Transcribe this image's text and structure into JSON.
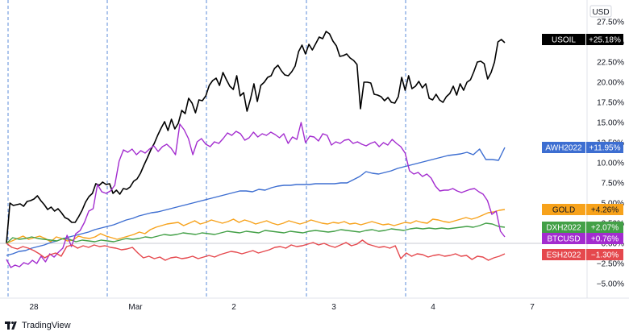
{
  "currency_unit": "USD",
  "branding": "TradingView",
  "chart_data": {
    "type": "line",
    "title": "",
    "xlabel": "",
    "ylabel": "",
    "x_labels": [
      "28",
      "Mar",
      "2",
      "3",
      "4",
      "7"
    ],
    "y_ticks": [
      "27.50%",
      "25.00%",
      "22.50%",
      "20.00%",
      "17.50%",
      "15.00%",
      "12.50%",
      "10.00%",
      "7.50%",
      "5.00%",
      "2.50%",
      "0.00%",
      "−2.50%",
      "−5.00%"
    ],
    "ylim": [
      -6.5,
      28.5
    ],
    "grid": "vertical dashed session separators",
    "legend": "right-axis value badges",
    "series": [
      {
        "name": "USOIL",
        "label": "+25.18%",
        "color": "#000000",
        "values": [
          0,
          5.0,
          4.7,
          4.8,
          4.9,
          4.6,
          5.2,
          5.3,
          5.5,
          5.9,
          5.3,
          4.8,
          4.2,
          4.5,
          4.0,
          4.3,
          3.8,
          3.2,
          3.0,
          2.6,
          2.6,
          3.3,
          4.1,
          5.1,
          5.8,
          6.2,
          7.4,
          7.2,
          7.6,
          7.3,
          7.4,
          6.2,
          6.6,
          6.1,
          6.8,
          6.7,
          7.0,
          7.7,
          8.0,
          8.7,
          9.7,
          10.6,
          11.6,
          12.4,
          13.4,
          14.3,
          15.1,
          14.0,
          15.4,
          14.2,
          14.9,
          16.5,
          16.1,
          18.0,
          17.4,
          16.2,
          17.8,
          17.7,
          18.3,
          19.6,
          20.2,
          20.5,
          19.6,
          21.2,
          20.3,
          19.5,
          19.1,
          20.8,
          18.3,
          18.7,
          16.4,
          17.9,
          19.8,
          17.6,
          19.6,
          20.0,
          20.6,
          20.8,
          21.7,
          22.1,
          21.4,
          20.9,
          20.8,
          21.3,
          22.0,
          23.8,
          24.6,
          23.5,
          24.7,
          24.0,
          24.8,
          25.6,
          25.4,
          26.3,
          26.0,
          25.1,
          24.5,
          23.2,
          23.3,
          23.5,
          23.0,
          22.7,
          22.2,
          16.7,
          20.0,
          20.0,
          19.9,
          18.5,
          18.4,
          18.2,
          17.7,
          18.1,
          17.5,
          17.4,
          18.2,
          20.6,
          19.0,
          20.8,
          19.2,
          19.5,
          20.1,
          19.3,
          19.8,
          18.0,
          17.8,
          18.5,
          17.8,
          17.5,
          18.2,
          18.6,
          19.5,
          18.4,
          19.8,
          19.0,
          20.0,
          20.3,
          21.3,
          22.5,
          22.6,
          22.3,
          20.4,
          21.2,
          22.5,
          25.0,
          25.3,
          24.9
        ]
      },
      {
        "name": "AWH2022",
        "label": "+11.95%",
        "color": "#3d6ed1",
        "values": [
          -1.5,
          -1.3,
          -1.0,
          -0.9,
          -0.6,
          -0.4,
          -0.2,
          0.1,
          0.3,
          0.6,
          0.8,
          1.0,
          1.2,
          1.4,
          1.7,
          1.9,
          2.1,
          2.3,
          2.6,
          2.9,
          3.1,
          3.4,
          3.6,
          3.8,
          3.9,
          4.1,
          4.3,
          4.5,
          4.7,
          4.9,
          5.1,
          5.3,
          5.5,
          5.7,
          5.9,
          6.1,
          6.3,
          6.5,
          6.5,
          6.4,
          6.7,
          6.6,
          6.9,
          7.1,
          7.2,
          7.2,
          7.3,
          7.3,
          7.3,
          7.4,
          7.4,
          7.4,
          7.4,
          7.5,
          7.5,
          7.9,
          8.3,
          8.9,
          8.7,
          8.6,
          8.8,
          9.0,
          9.3,
          9.5,
          9.7,
          9.9,
          10.1,
          10.3,
          10.5,
          10.7,
          10.9,
          11.0,
          11.1,
          11.3,
          11.0,
          11.7,
          10.4,
          10.4,
          10.3,
          11.9
        ]
      },
      {
        "name": "GOLD",
        "label": "+4.26%",
        "color": "#f7a21b",
        "values": [
          0,
          0.3,
          0.6,
          0.9,
          0.5,
          0.7,
          0.9,
          0.6,
          0.2,
          0.8,
          0.6,
          0.3,
          0.4,
          0.9,
          0.7,
          0.6,
          0.8,
          1.2,
          0.9,
          0.7,
          0.5,
          0.7,
          0.9,
          1.1,
          1.4,
          1.2,
          1.7,
          2.0,
          2.2,
          2.4,
          2.5,
          2.6,
          2.2,
          2.5,
          2.8,
          2.4,
          2.6,
          2.9,
          2.7,
          2.5,
          2.7,
          3.0,
          2.6,
          2.9,
          2.7,
          2.4,
          2.6,
          2.8,
          2.5,
          2.3,
          2.5,
          2.8,
          2.6,
          2.4,
          2.6,
          2.9,
          2.7,
          2.5,
          2.4,
          2.6,
          2.5,
          2.7,
          2.4,
          2.5,
          2.3,
          2.5,
          2.7,
          2.5,
          2.3,
          2.4,
          2.2,
          2.4,
          2.6,
          2.5,
          2.8,
          2.6,
          2.5,
          3.0,
          2.9,
          2.7,
          2.6,
          2.8,
          3.0,
          3.2,
          3.0,
          3.2,
          3.5,
          3.8,
          3.9,
          4.1,
          4.2
        ]
      },
      {
        "name": "DXH2022",
        "label": "+2.07%",
        "color": "#43a047",
        "values": [
          0,
          0.7,
          0.5,
          0.6,
          0.8,
          0.6,
          0.5,
          0.4,
          0.3,
          0.6,
          0.5,
          0.2,
          0.4,
          0.3,
          0.2,
          0.4,
          0.3,
          0.2,
          0.4,
          0.6,
          0.5,
          0.6,
          0.8,
          0.7,
          0.9,
          1.1,
          1.0,
          1.1,
          1.3,
          1.2,
          1.1,
          1.3,
          1.2,
          1.1,
          1.3,
          1.5,
          1.4,
          1.3,
          1.5,
          1.4,
          1.3,
          1.6,
          1.5,
          1.4,
          1.3,
          1.5,
          1.4,
          1.3,
          1.5,
          1.6,
          1.5,
          1.4,
          1.5,
          1.7,
          1.6,
          1.5,
          1.4,
          1.6,
          1.7,
          1.5,
          1.6,
          1.8,
          1.7,
          1.6,
          1.8,
          1.9,
          1.8,
          1.9,
          1.8,
          1.9,
          1.8,
          1.9,
          2.0,
          2.1,
          2.0,
          2.2,
          2.5,
          2.4,
          2.1,
          2.0
        ]
      },
      {
        "name": "BTCUSD",
        "label": "+0.76%",
        "color": "#a32ccf",
        "values": [
          -2.0,
          -3.0,
          -2.7,
          -2.9,
          -2.4,
          -2.6,
          -2.1,
          -2.5,
          -1.6,
          -2.3,
          -1.3,
          -1.7,
          -1.1,
          -0.6,
          1.0,
          -0.4,
          1.2,
          1.6,
          2.6,
          4.0,
          4.3,
          7.3,
          6.4,
          6.2,
          6.5,
          7.2,
          10.2,
          11.6,
          11.3,
          11.7,
          11.0,
          11.5,
          11.2,
          11.7,
          12.1,
          11.4,
          12.0,
          12.3,
          11.8,
          11.0,
          14.8,
          14.1,
          13.0,
          11.0,
          12.6,
          13.0,
          12.3,
          12.0,
          12.6,
          12.4,
          13.0,
          13.7,
          13.4,
          13.9,
          13.6,
          12.8,
          13.1,
          13.8,
          13.2,
          13.6,
          13.4,
          13.8,
          13.5,
          13.1,
          13.6,
          12.4,
          13.2,
          12.9,
          15.0,
          12.5,
          13.3,
          13.2,
          12.7,
          13.6,
          13.4,
          12.2,
          12.6,
          12.4,
          12.8,
          12.9,
          12.4,
          12.6,
          12.3,
          12.1,
          12.4,
          12.6,
          12.0,
          12.5,
          12.2,
          12.9,
          12.4,
          12.0,
          11.2,
          9.0,
          8.6,
          8.8,
          8.3,
          8.6,
          8.1,
          7.1,
          6.5,
          6.6,
          6.6,
          6.8,
          6.5,
          6.3,
          6.5,
          6.7,
          6.8,
          6.4,
          6.1,
          5.3,
          3.6,
          4.0,
          1.5,
          0.8
        ]
      },
      {
        "name": "ESH2022",
        "label": "−1.30%",
        "color": "#e5484d",
        "values": [
          0,
          -0.5,
          -0.7,
          -0.4,
          -0.6,
          -0.9,
          -1.3,
          -1.8,
          -1.4,
          -1.2,
          -1.6,
          -0.4,
          -0.2,
          -0.6,
          -0.3,
          -0.5,
          -0.2,
          -0.4,
          -0.3,
          -0.5,
          -0.6,
          -0.8,
          -0.7,
          -0.5,
          -1.2,
          -1.8,
          -1.6,
          -1.9,
          -1.7,
          -2.1,
          -1.8,
          -1.7,
          -1.9,
          -1.8,
          -1.6,
          -1.9,
          -1.7,
          -1.5,
          -1.7,
          -1.4,
          -1.2,
          -1.0,
          -1.1,
          -1.3,
          -1.1,
          -0.9,
          -1.2,
          -1.0,
          -0.8,
          -0.5,
          -0.4,
          -0.6,
          -0.2,
          -0.4,
          -0.3,
          -0.1,
          0.1,
          -0.2,
          0.0,
          -0.3,
          -0.5,
          -0.2,
          0.1,
          -0.3,
          -0.1,
          0.4,
          -0.1,
          -0.3,
          -0.5,
          -0.4,
          -0.6,
          -0.3,
          -1.9,
          -1.2,
          -1.6,
          -1.3,
          -1.4,
          -1.7,
          -1.5,
          -1.4,
          -1.6,
          -1.5,
          -1.3,
          -1.6,
          -1.5,
          -2.0,
          -1.6,
          -1.7,
          -2.1,
          -1.8,
          -1.6,
          -1.3
        ]
      }
    ]
  }
}
